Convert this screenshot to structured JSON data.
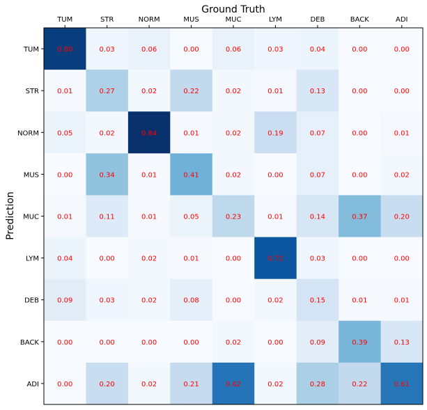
{
  "chart_data": {
    "type": "heatmap",
    "title": "Ground Truth",
    "xlabel": "",
    "ylabel": "Prediction",
    "x_categories": [
      "TUM",
      "STR",
      "NORM",
      "MUS",
      "MUC",
      "LYM",
      "DEB",
      "BACK",
      "ADI"
    ],
    "y_categories": [
      "TUM",
      "STR",
      "NORM",
      "MUS",
      "MUC",
      "LYM",
      "DEB",
      "BACK",
      "ADI"
    ],
    "x_axis_position": "top",
    "colormap": "Blues",
    "value_range": [
      0,
      0.84
    ],
    "annotation_color": "#ff0000",
    "values": [
      [
        0.8,
        0.03,
        0.06,
        0.0,
        0.06,
        0.03,
        0.04,
        0.0,
        0.0
      ],
      [
        0.01,
        0.27,
        0.02,
        0.22,
        0.02,
        0.01,
        0.13,
        0.0,
        0.0
      ],
      [
        0.05,
        0.02,
        0.84,
        0.01,
        0.02,
        0.19,
        0.07,
        0.0,
        0.01
      ],
      [
        0.0,
        0.34,
        0.01,
        0.41,
        0.02,
        0.0,
        0.07,
        0.0,
        0.02
      ],
      [
        0.01,
        0.11,
        0.01,
        0.05,
        0.23,
        0.01,
        0.14,
        0.37,
        0.2
      ],
      [
        0.04,
        0.0,
        0.02,
        0.01,
        0.0,
        0.72,
        0.03,
        0.0,
        0.0
      ],
      [
        0.09,
        0.03,
        0.02,
        0.08,
        0.0,
        0.02,
        0.15,
        0.01,
        0.01
      ],
      [
        0.0,
        0.0,
        0.0,
        0.0,
        0.02,
        0.0,
        0.09,
        0.39,
        0.13
      ],
      [
        0.0,
        0.2,
        0.02,
        0.21,
        0.62,
        0.02,
        0.28,
        0.22,
        0.61
      ]
    ]
  }
}
